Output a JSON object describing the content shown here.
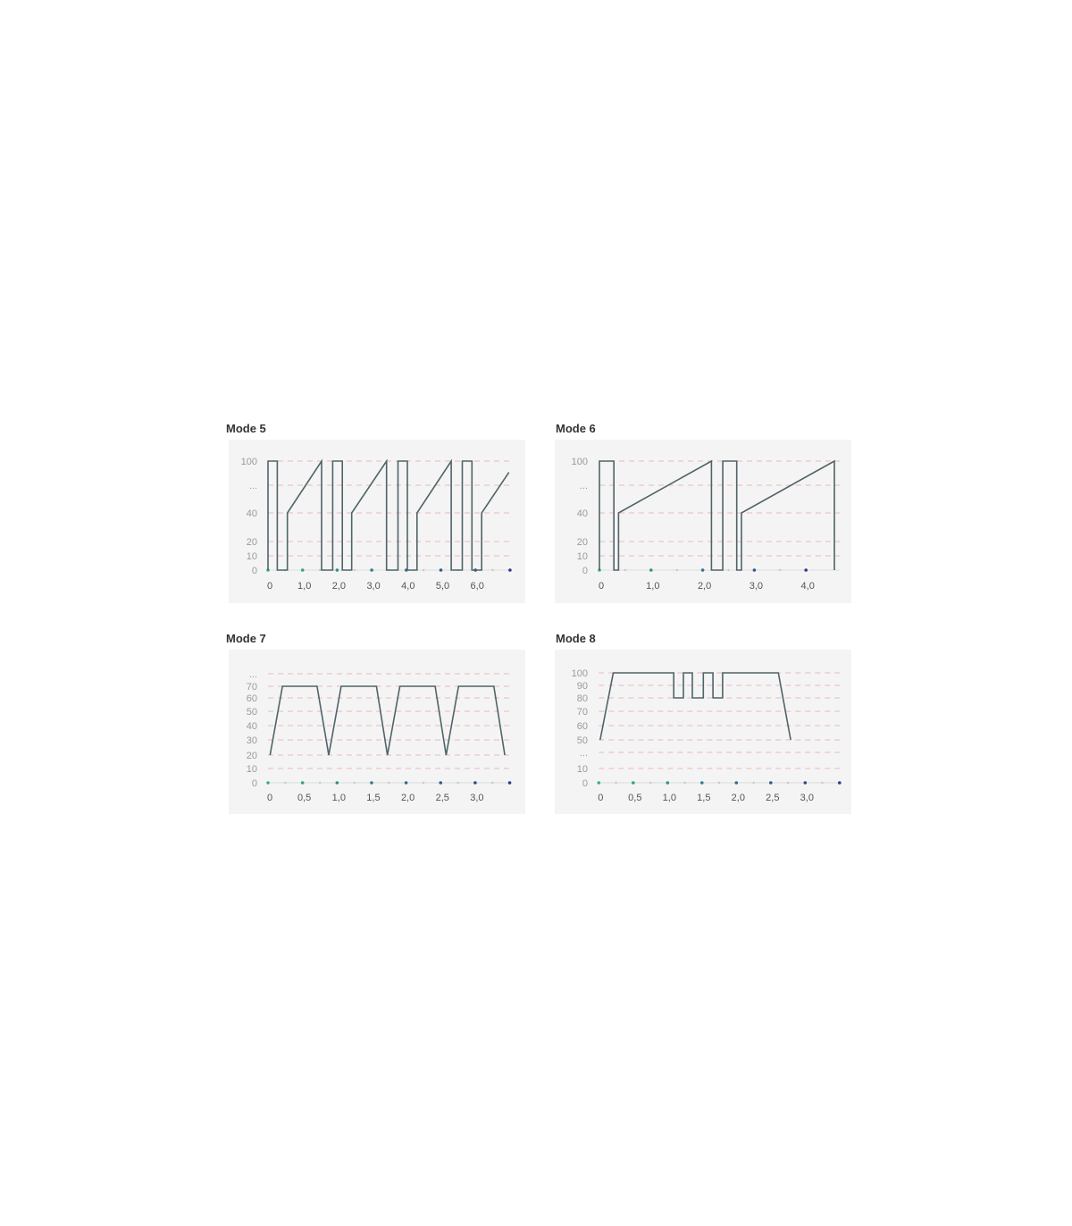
{
  "colors": {
    "panel_bg": "#f5f4f4",
    "line": "#4f6468",
    "grid": "#e5b7c3",
    "dot_start": "#36b08a",
    "dot_end": "#2b3d8a",
    "minor_dot": "#c8c8c8"
  },
  "chart_data": [
    {
      "type": "line",
      "title": "Mode 5",
      "y_ticks": [
        {
          "label": "100",
          "value": 100
        },
        {
          "label": "...",
          "value": null
        },
        {
          "label": "40",
          "value": 40
        },
        {
          "label": "20",
          "value": 20
        },
        {
          "label": "10",
          "value": 10
        },
        {
          "label": "0",
          "value": 0
        }
      ],
      "x_ticks": [
        {
          "label": "0",
          "value": 0
        },
        {
          "label": "1,0",
          "value": 1
        },
        {
          "label": "2,0",
          "value": 2
        },
        {
          "label": "3,0",
          "value": 3
        },
        {
          "label": "4,0",
          "value": 4
        },
        {
          "label": "5,0",
          "value": 5
        },
        {
          "label": "6,0",
          "value": 6
        }
      ],
      "x_dots": [
        0,
        1,
        2,
        3,
        4,
        5,
        6,
        7
      ],
      "grid": true,
      "points": [
        [
          0,
          0
        ],
        [
          0,
          100
        ],
        [
          0.27,
          100
        ],
        [
          0.27,
          0
        ],
        [
          0.56,
          0
        ],
        [
          0.56,
          40
        ],
        [
          1.55,
          100
        ],
        [
          1.55,
          0
        ],
        [
          1.87,
          0
        ],
        [
          1.87,
          100
        ],
        [
          2.15,
          100
        ],
        [
          2.15,
          0
        ],
        [
          2.42,
          0
        ],
        [
          2.42,
          40
        ],
        [
          3.43,
          100
        ],
        [
          3.43,
          0
        ],
        [
          3.76,
          0
        ],
        [
          3.76,
          100
        ],
        [
          4.03,
          100
        ],
        [
          4.03,
          0
        ],
        [
          4.31,
          0
        ],
        [
          4.31,
          40
        ],
        [
          5.3,
          100
        ],
        [
          5.3,
          0
        ],
        [
          5.62,
          0
        ],
        [
          5.62,
          100
        ],
        [
          5.9,
          100
        ],
        [
          5.9,
          0
        ],
        [
          6.18,
          0
        ],
        [
          6.18,
          40
        ],
        [
          6.97,
          87
        ]
      ]
    },
    {
      "type": "line",
      "title": "Mode 6",
      "y_ticks": [
        {
          "label": "100",
          "value": 100
        },
        {
          "label": "...",
          "value": null
        },
        {
          "label": "40",
          "value": 40
        },
        {
          "label": "20",
          "value": 20
        },
        {
          "label": "10",
          "value": 10
        },
        {
          "label": "0",
          "value": 0
        }
      ],
      "x_ticks": [
        {
          "label": "0",
          "value": 0
        },
        {
          "label": "1,0",
          "value": 1
        },
        {
          "label": "2,0",
          "value": 2
        },
        {
          "label": "3,0",
          "value": 3
        },
        {
          "label": "4,0",
          "value": 4
        }
      ],
      "x_dots": [
        0,
        1,
        2,
        3,
        4
      ],
      "grid": true,
      "points": [
        [
          0,
          0
        ],
        [
          0,
          100
        ],
        [
          0.28,
          100
        ],
        [
          0.28,
          0
        ],
        [
          0.37,
          0
        ],
        [
          0.37,
          40
        ],
        [
          2.17,
          100
        ],
        [
          2.17,
          0
        ],
        [
          2.39,
          0
        ],
        [
          2.39,
          100
        ],
        [
          2.66,
          100
        ],
        [
          2.66,
          0
        ],
        [
          2.75,
          0
        ],
        [
          2.75,
          40
        ],
        [
          4.55,
          100
        ],
        [
          4.55,
          0
        ]
      ]
    },
    {
      "type": "line",
      "title": "Mode 7",
      "y_ticks": [
        {
          "label": "...",
          "value": null
        },
        {
          "label": "70",
          "value": 70
        },
        {
          "label": "60",
          "value": 60
        },
        {
          "label": "50",
          "value": 50
        },
        {
          "label": "40",
          "value": 40
        },
        {
          "label": "30",
          "value": 30
        },
        {
          "label": "20",
          "value": 20
        },
        {
          "label": "10",
          "value": 10
        },
        {
          "label": "0",
          "value": 0
        }
      ],
      "x_ticks": [
        {
          "label": "0",
          "value": 0
        },
        {
          "label": "0,5",
          "value": 0.5
        },
        {
          "label": "1,0",
          "value": 1
        },
        {
          "label": "1,5",
          "value": 1.5
        },
        {
          "label": "2,0",
          "value": 2
        },
        {
          "label": "2,5",
          "value": 2.5
        },
        {
          "label": "3,0",
          "value": 3
        }
      ],
      "x_dots": [
        0,
        0.5,
        1,
        1.5,
        2,
        2.5,
        3,
        3.5
      ],
      "grid": true,
      "points": [
        [
          0.03,
          20
        ],
        [
          0.21,
          70
        ],
        [
          0.71,
          70
        ],
        [
          0.88,
          20
        ],
        [
          1.06,
          70
        ],
        [
          1.57,
          70
        ],
        [
          1.73,
          20
        ],
        [
          1.91,
          70
        ],
        [
          2.42,
          70
        ],
        [
          2.58,
          20
        ],
        [
          2.76,
          70
        ],
        [
          3.27,
          70
        ],
        [
          3.43,
          20
        ]
      ]
    },
    {
      "type": "line",
      "title": "Mode 8",
      "y_ticks": [
        {
          "label": "100",
          "value": 100
        },
        {
          "label": "90",
          "value": 90
        },
        {
          "label": "80",
          "value": 80
        },
        {
          "label": "70",
          "value": 70
        },
        {
          "label": "60",
          "value": 60
        },
        {
          "label": "50",
          "value": 50
        },
        {
          "label": "...",
          "value": null
        },
        {
          "label": "10",
          "value": 10
        },
        {
          "label": "0",
          "value": 0
        }
      ],
      "x_ticks": [
        {
          "label": "0",
          "value": 0
        },
        {
          "label": "0,5",
          "value": 0.5
        },
        {
          "label": "1,0",
          "value": 1
        },
        {
          "label": "1,5",
          "value": 1.5
        },
        {
          "label": "2,0",
          "value": 2
        },
        {
          "label": "2,5",
          "value": 2.5
        },
        {
          "label": "3,0",
          "value": 3
        }
      ],
      "x_dots": [
        0,
        0.5,
        1,
        1.5,
        2,
        2.5,
        3,
        3.5
      ],
      "grid": true,
      "points": [
        [
          0.02,
          50
        ],
        [
          0.21,
          100
        ],
        [
          1.09,
          100
        ],
        [
          1.09,
          80
        ],
        [
          1.23,
          80
        ],
        [
          1.23,
          100
        ],
        [
          1.36,
          100
        ],
        [
          1.36,
          80
        ],
        [
          1.52,
          80
        ],
        [
          1.52,
          100
        ],
        [
          1.66,
          100
        ],
        [
          1.66,
          80
        ],
        [
          1.8,
          80
        ],
        [
          1.8,
          100
        ],
        [
          2.61,
          100
        ],
        [
          2.79,
          50
        ]
      ]
    }
  ]
}
